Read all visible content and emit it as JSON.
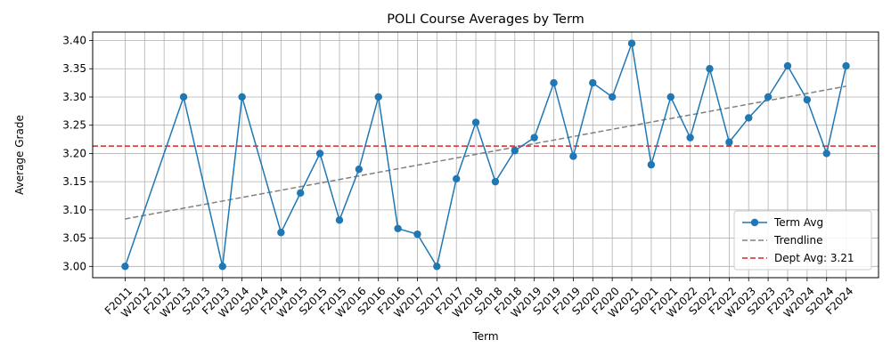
{
  "chart_data": {
    "type": "line",
    "title": "POLI Course Averages by Term",
    "xlabel": "Term",
    "ylabel": "Average Grade",
    "categories": [
      "F2011",
      "W2012",
      "F2012",
      "W2013",
      "S2013",
      "F2013",
      "W2014",
      "S2014",
      "F2014",
      "W2015",
      "S2015",
      "F2015",
      "W2016",
      "S2016",
      "F2016",
      "W2017",
      "S2017",
      "F2017",
      "W2018",
      "S2018",
      "F2018",
      "W2019",
      "S2019",
      "F2019",
      "S2020",
      "F2020",
      "W2021",
      "S2021",
      "F2021",
      "W2022",
      "S2022",
      "F2022",
      "W2023",
      "S2023",
      "F2023",
      "W2024",
      "S2024",
      "F2024"
    ],
    "ylim": [
      2.98,
      3.415
    ],
    "yticks": [
      3.0,
      3.05,
      3.1,
      3.15,
      3.2,
      3.25,
      3.3,
      3.35,
      3.4
    ],
    "grid": true,
    "legend_position": "lower-right",
    "series": [
      {
        "name": "Term Avg",
        "color": "#1f77b4",
        "marker": "circle",
        "values": [
          3.0,
          null,
          null,
          3.3,
          null,
          3.0,
          3.3,
          null,
          3.06,
          3.13,
          3.2,
          3.082,
          3.172,
          3.3,
          3.067,
          3.057,
          3.0,
          3.155,
          3.255,
          3.15,
          3.205,
          3.228,
          3.325,
          3.195,
          3.325,
          3.3,
          3.395,
          3.18,
          3.3,
          3.228,
          3.35,
          3.22,
          3.263,
          3.3,
          3.355,
          3.295,
          3.2,
          3.355
        ]
      }
    ],
    "trendline": {
      "name": "Trendline",
      "color": "#808080",
      "start": 3.084,
      "end": 3.319
    },
    "reference_line": {
      "name": "Dept Avg: 3.21",
      "color": "#d62728",
      "value": 3.213
    }
  }
}
